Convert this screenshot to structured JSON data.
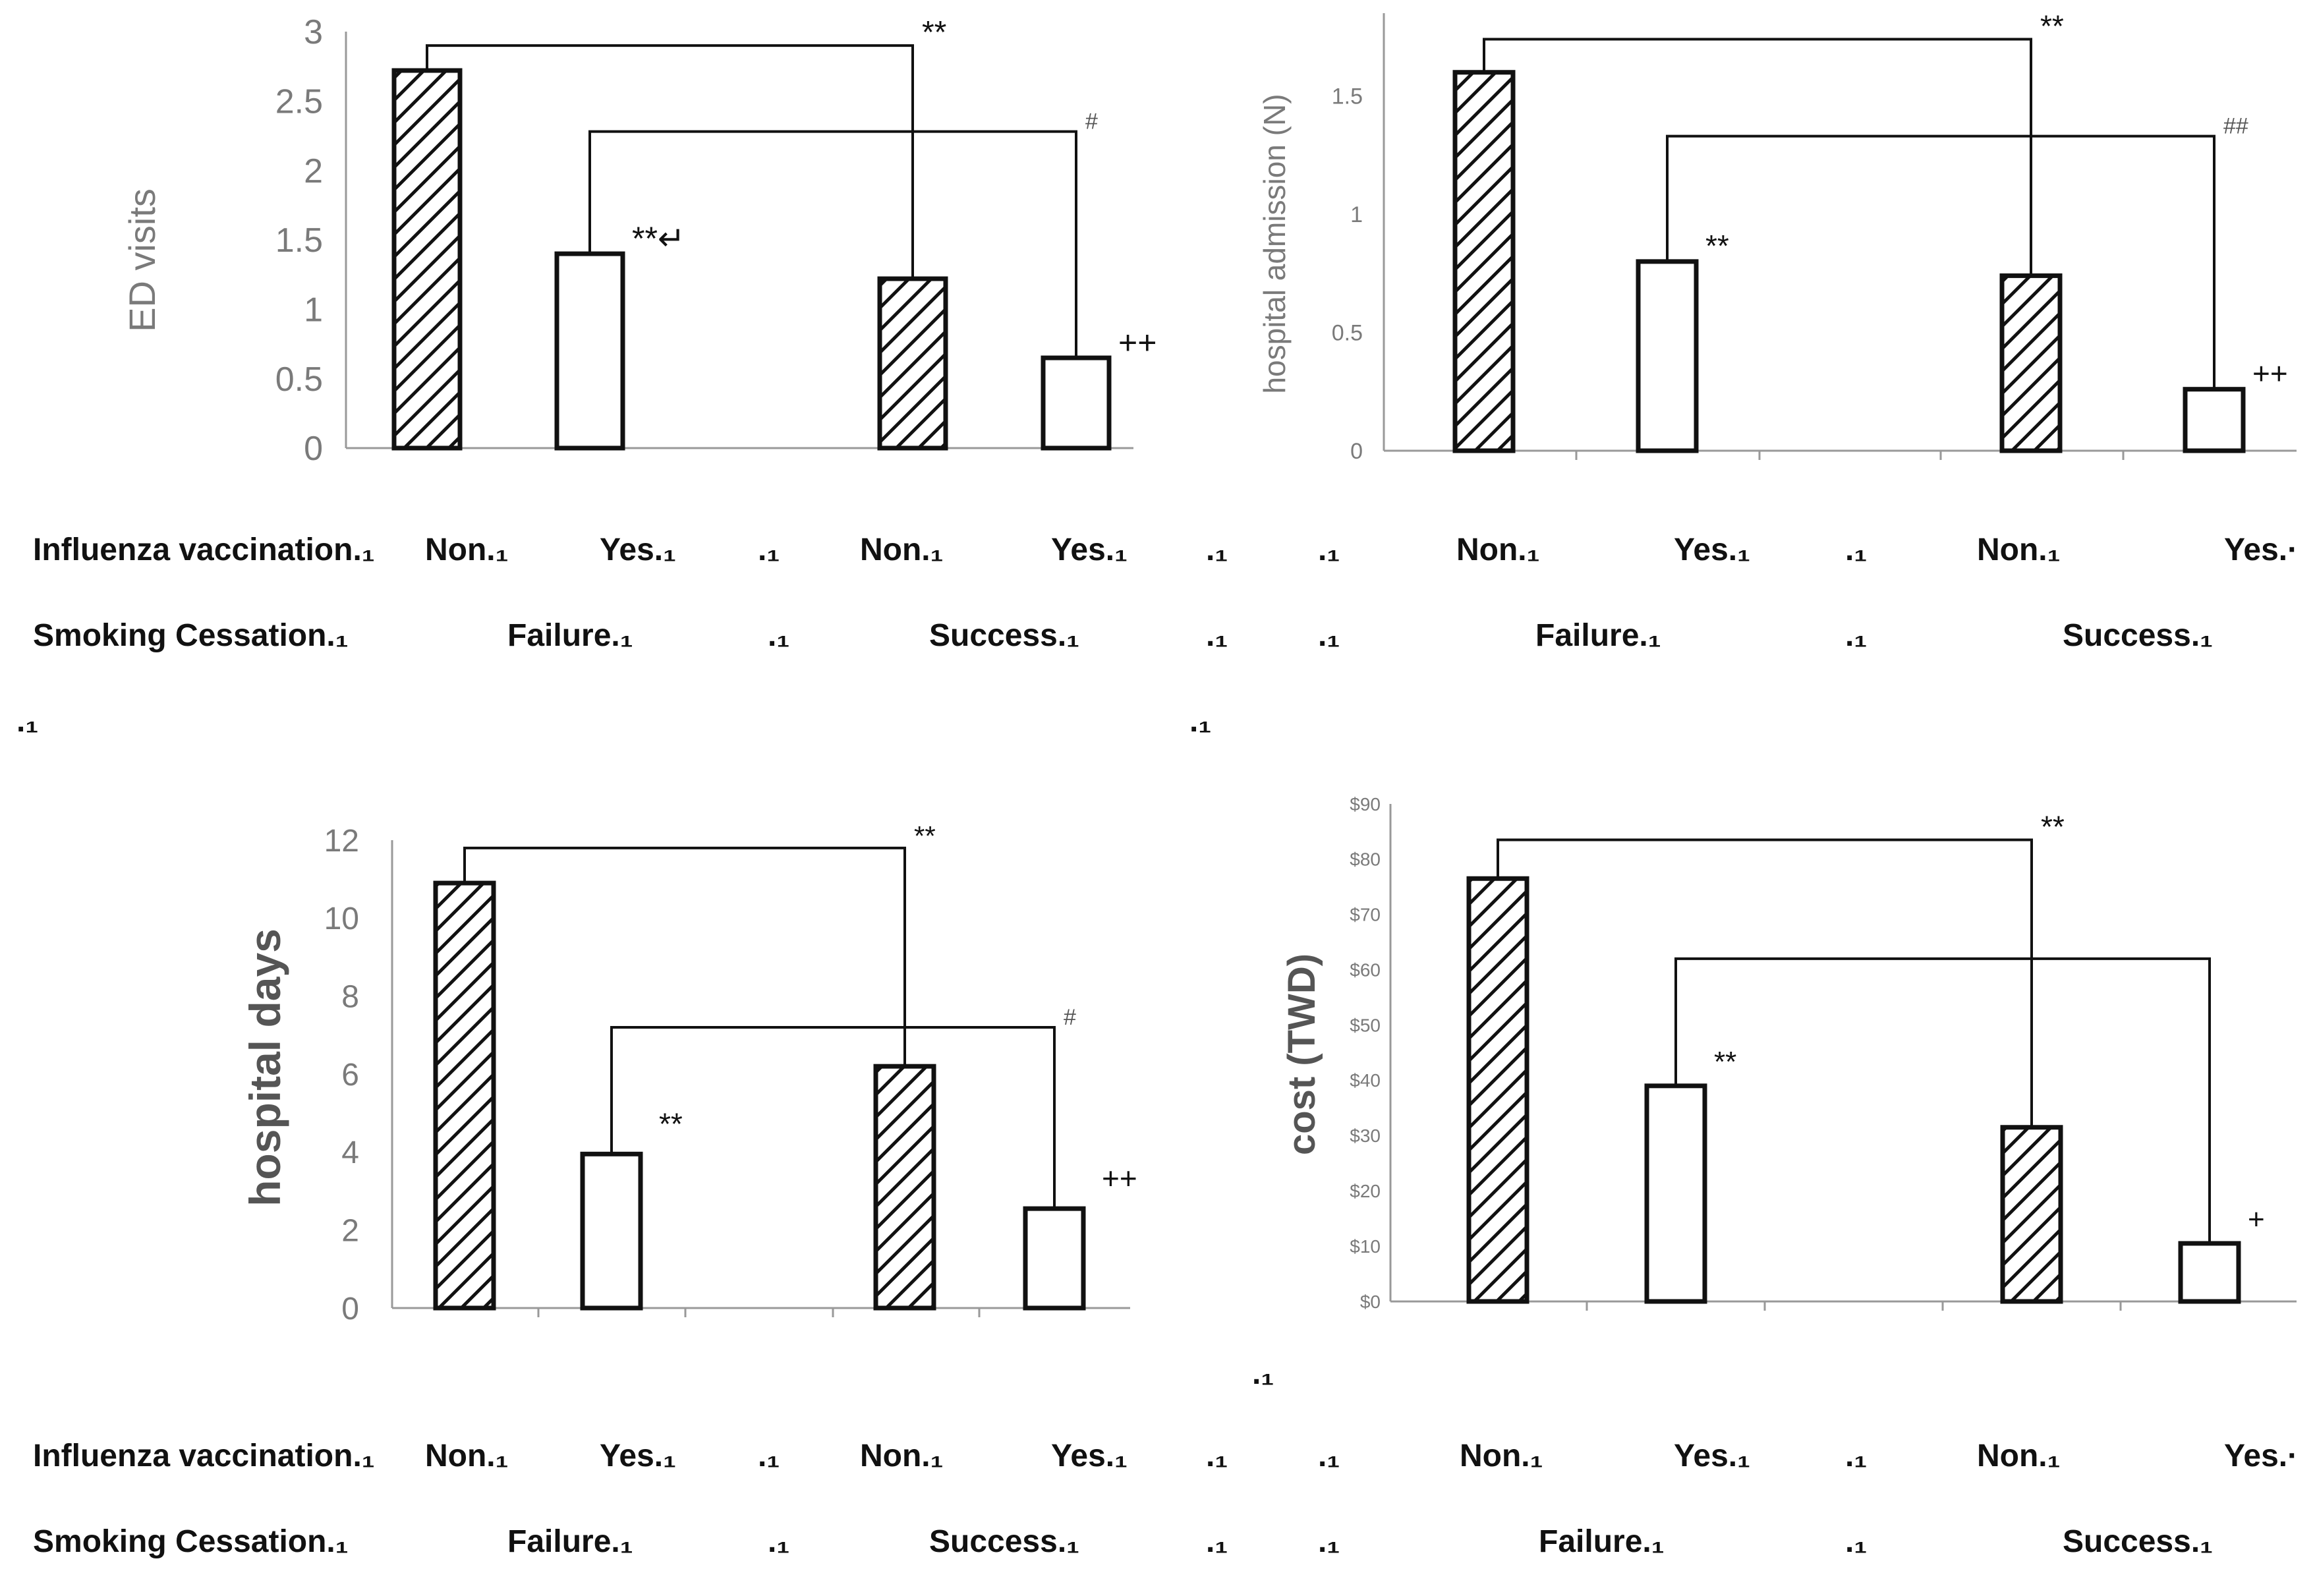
{
  "chart_data": [
    {
      "id": "p1",
      "type": "bar",
      "ylabel": "ED visits",
      "ylim": [
        0,
        3
      ],
      "ticks": [
        "0",
        "0.5",
        "1",
        "1.5",
        "2",
        "2.5",
        "3"
      ],
      "categories": [
        "Failure / Non",
        "Failure / Yes",
        "Success / Non",
        "Success / Yes"
      ],
      "values": [
        2.72,
        1.4,
        1.22,
        0.65
      ],
      "patterns": [
        "hatch",
        "plain",
        "hatch",
        "plain"
      ],
      "bar_marks": [
        "",
        "**↵",
        "",
        "++"
      ],
      "brackets": [
        {
          "from": 0,
          "to": 2,
          "level": 2.9,
          "label": "**"
        },
        {
          "from": 1,
          "to": 3,
          "level": 2.28,
          "label": "#"
        }
      ]
    },
    {
      "id": "p2",
      "type": "bar",
      "ylabel": "hospital admission (N)",
      "ylim": [
        0,
        1.85
      ],
      "ticks": [
        "0",
        "0.5",
        "1",
        "1.5"
      ],
      "tick_values": [
        0,
        0.5,
        1,
        1.5
      ],
      "categories": [
        "Failure / Non",
        "Failure / Yes",
        "Success / Non",
        "Success / Yes"
      ],
      "values": [
        1.6,
        0.8,
        0.74,
        0.26
      ],
      "patterns": [
        "hatch",
        "plain",
        "hatch",
        "plain"
      ],
      "bar_marks": [
        "",
        "**",
        "",
        "++"
      ],
      "brackets": [
        {
          "from": 0,
          "to": 2,
          "level": 1.74,
          "label": "**"
        },
        {
          "from": 1,
          "to": 3,
          "level": 1.33,
          "label": "##"
        }
      ]
    },
    {
      "id": "p3",
      "type": "bar",
      "ylabel": "hospital days",
      "ylim": [
        0,
        12
      ],
      "ticks": [
        "0",
        "2",
        "4",
        "6",
        "8",
        "10",
        "12"
      ],
      "categories": [
        "Failure / Non",
        "Failure / Yes",
        "Success / Non",
        "Success / Yes"
      ],
      "values": [
        10.9,
        3.95,
        6.2,
        2.55
      ],
      "patterns": [
        "hatch",
        "plain",
        "hatch",
        "plain"
      ],
      "bar_marks": [
        "",
        "**",
        "",
        "++"
      ],
      "brackets": [
        {
          "from": 0,
          "to": 2,
          "level": 11.8,
          "label": "**"
        },
        {
          "from": 1,
          "to": 3,
          "level": 7.2,
          "label": "#"
        }
      ]
    },
    {
      "id": "p4",
      "type": "bar",
      "ylabel": "cost (TWD)",
      "ylim": [
        0,
        90
      ],
      "ticks": [
        "$0",
        "$10",
        "$20",
        "$30",
        "$40",
        "$50",
        "$60",
        "$70",
        "$80",
        "$90"
      ],
      "categories": [
        "Failure / Non",
        "Failure / Yes",
        "Success / Non",
        "Success / Yes"
      ],
      "values": [
        76.5,
        39,
        31.5,
        10.5
      ],
      "patterns": [
        "hatch",
        "plain",
        "hatch",
        "plain"
      ],
      "bar_marks": [
        "",
        "**",
        "",
        "+"
      ],
      "brackets": [
        {
          "from": 0,
          "to": 2,
          "level": 83.5,
          "label": "**"
        },
        {
          "from": 1,
          "to": 3,
          "level": 62,
          "label": ""
        }
      ]
    }
  ],
  "tables": {
    "row1_label": "Influenza vaccination.₁",
    "row2_label": "Smoking Cessation.₁",
    "non": "Non.₁",
    "yes": "Yes.₁",
    "yes_end": "Yes.·",
    "failure": "Failure.₁",
    "success": "Success.₁",
    "dot": ".₁"
  }
}
